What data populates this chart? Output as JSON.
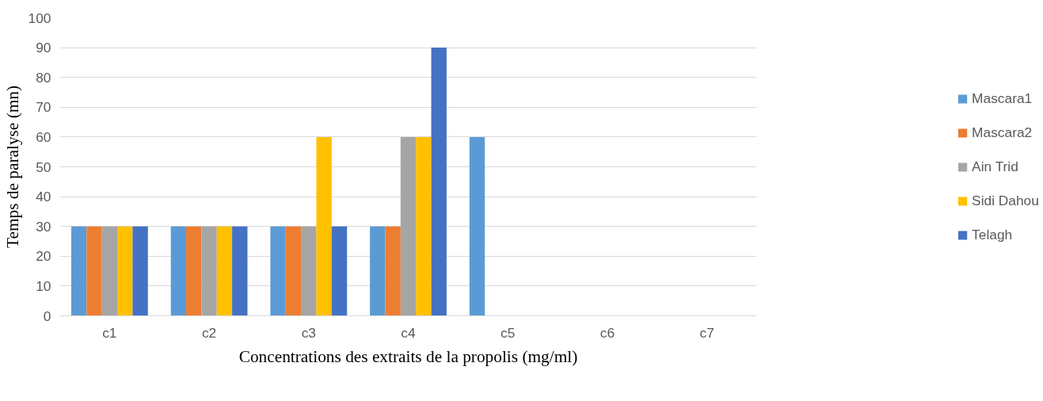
{
  "chart_data": {
    "type": "bar",
    "xlabel": "Concentrations des extraits de la propolis (mg/ml)",
    "ylabel": "Temps de paralyse (mn)",
    "categories": [
      "c1",
      "c2",
      "c3",
      "c4",
      "c5",
      "c6",
      "c7"
    ],
    "series": [
      {
        "name": "Mascara1",
        "color": "#5b9bd5",
        "values": [
          30,
          30,
          30,
          30,
          60,
          0,
          0
        ]
      },
      {
        "name": "Mascara2",
        "color": "#ed7d31",
        "values": [
          30,
          30,
          30,
          30,
          0,
          0,
          0
        ]
      },
      {
        "name": "Ain Trid",
        "color": "#a5a5a5",
        "values": [
          30,
          30,
          30,
          60,
          0,
          0,
          0
        ]
      },
      {
        "name": "Sidi Dahou",
        "color": "#ffc000",
        "values": [
          30,
          30,
          60,
          60,
          0,
          0,
          0
        ]
      },
      {
        "name": "Telagh",
        "color": "#4472c4",
        "values": [
          30,
          30,
          30,
          90,
          0,
          0,
          0
        ]
      }
    ],
    "ylim": [
      0,
      100
    ],
    "yticks": [
      0,
      10,
      20,
      30,
      40,
      50,
      60,
      70,
      80,
      90,
      100
    ],
    "grid": "y",
    "legend": "right"
  }
}
